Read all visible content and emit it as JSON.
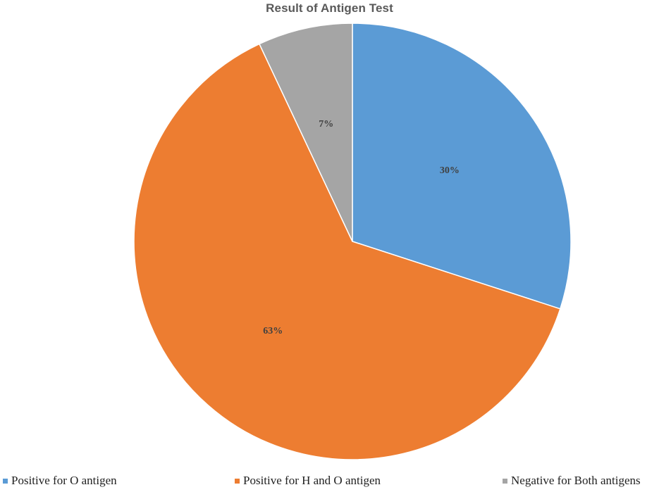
{
  "chart_data": {
    "type": "pie",
    "title": "Result of Antigen Test",
    "slices": [
      {
        "label": "Positive for O antigen",
        "value": 30,
        "display": "30%",
        "color": "#5B9BD5"
      },
      {
        "label": "Positive for H and O antigen",
        "value": 63,
        "display": "63%",
        "color": "#ED7D31"
      },
      {
        "label": "Negative for Both antigens",
        "value": 7,
        "display": "7%",
        "color": "#A5A5A5"
      }
    ],
    "start": "12 o'clock",
    "direction": "clockwise",
    "slice_border_color": "#FFFFFF",
    "legend": "bottom"
  }
}
